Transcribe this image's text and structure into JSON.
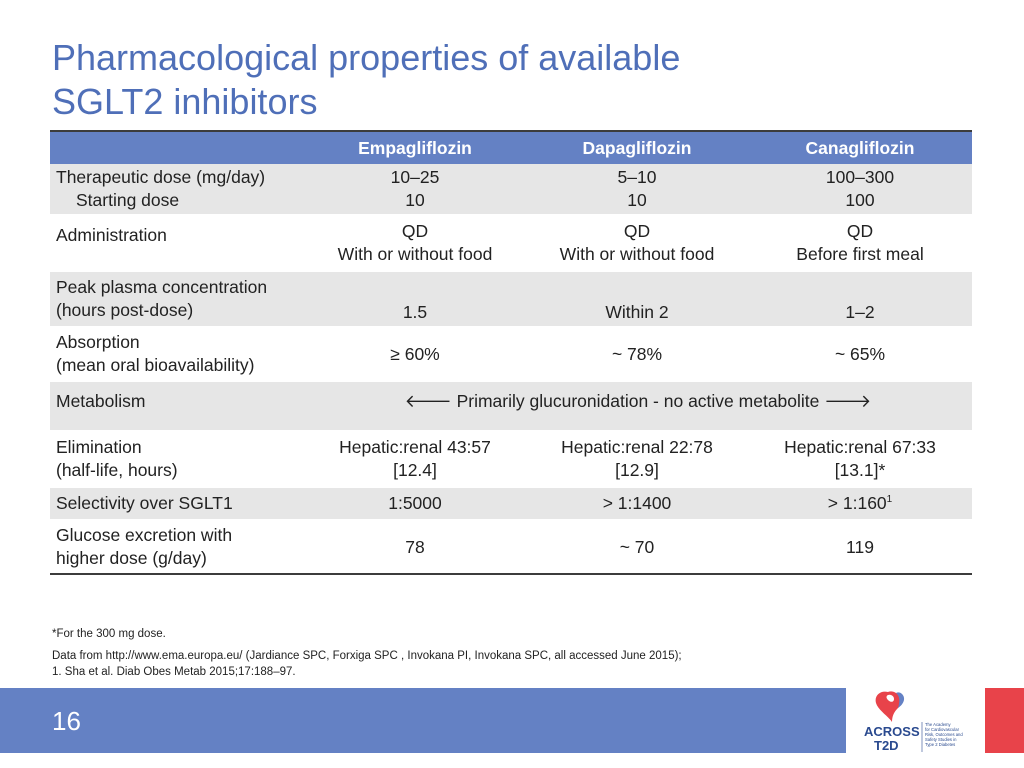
{
  "slide": {
    "title_line1": "Pharmacological properties of available",
    "title_line2": "SGLT2 inhibitors",
    "page_number": "16"
  },
  "table": {
    "headers": [
      "",
      "Empagliflozin",
      "Dapagliflozin",
      "Canagliflozin"
    ],
    "rows": [
      {
        "param": [
          "Therapeutic dose (mg/day)",
          "Starting dose"
        ],
        "empa": [
          "10–25",
          "10"
        ],
        "dapa": [
          "5–10",
          "10"
        ],
        "cana": [
          "100–300",
          "100"
        ]
      },
      {
        "param": [
          "Administration"
        ],
        "empa": [
          "QD",
          "With or without food"
        ],
        "dapa": [
          "QD",
          "With or without food"
        ],
        "cana": [
          "QD",
          "Before first meal"
        ]
      },
      {
        "param": [
          "Peak plasma concentration",
          "(hours post-dose)"
        ],
        "empa": "1.5",
        "dapa": "Within 2",
        "cana": "1–2"
      },
      {
        "param": [
          "Absorption",
          "(mean oral bioavailability)"
        ],
        "empa": "≥ 60%",
        "dapa": "~ 78%",
        "cana": "~ 65%"
      },
      {
        "param": [
          "Metabolism"
        ],
        "span": "🡐 Primarily glucuronidation - no active metabolite 🡒"
      },
      {
        "param": [
          "Elimination",
          "(half-life, hours)"
        ],
        "empa": [
          "Hepatic:renal 43:57",
          "[12.4]"
        ],
        "dapa": [
          "Hepatic:renal 22:78",
          "[12.9]"
        ],
        "cana": [
          "Hepatic:renal 67:33",
          "[13.1]*"
        ]
      },
      {
        "param": [
          "Selectivity over SGLT1"
        ],
        "empa": "1:5000",
        "dapa": "> 1:1400",
        "cana": "> 1:160",
        "cana_sup": "1"
      },
      {
        "param": [
          "Glucose excretion with",
          "higher dose (g/day)"
        ],
        "empa": "78",
        "dapa": "~ 70",
        "cana": "119"
      }
    ]
  },
  "footnotes": {
    "line1": "*For the 300 mg dose.",
    "line2": "Data from http://www.ema.europa.eu/ (Jardiance SPC, Forxiga SPC , Invokana PI, Invokana SPC, all  accessed June 2015);",
    "line3": "1. Sha et al. Diab Obes Metab 2015;17:188–97."
  },
  "logo": {
    "name": "ACROSS",
    "name2": "T2D",
    "tagline": [
      "The Academy",
      "for Cardiovascular",
      "Risk, Outcomes and",
      "Safety Studies in",
      "Type 2 Diabetes"
    ]
  },
  "colors": {
    "title": "#4f6fb8",
    "header_bar": "#6481c4",
    "row_shade": "#e6e6e6",
    "red_accent": "#e8434a"
  }
}
